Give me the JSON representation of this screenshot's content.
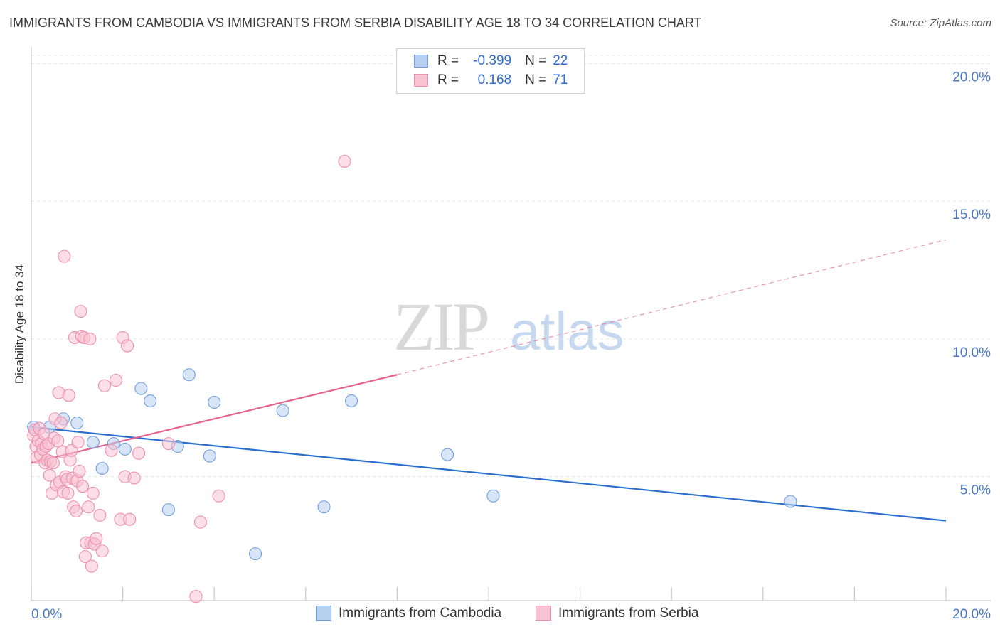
{
  "title": "IMMIGRANTS FROM CAMBODIA VS IMMIGRANTS FROM SERBIA DISABILITY AGE 18 TO 34 CORRELATION CHART",
  "source": "Source: ZipAtlas.com",
  "watermark": {
    "zip": "ZIP",
    "atlas": "atlas"
  },
  "legend": {
    "r_label": "R =",
    "n_label": "N =",
    "cambodia": {
      "r": "-0.399",
      "n": "22"
    },
    "serbia": {
      "r": "0.168",
      "n": "71"
    }
  },
  "colors": {
    "cambodia_fill": "#b8d0f0",
    "cambodia_stroke": "#6e9ee0",
    "cambodia_line": "#2a6fcf",
    "serbia_fill": "#f7c3d3",
    "serbia_stroke": "#ee8fae",
    "serbia_line": "#e4648f",
    "tick_text": "#4a79c8",
    "grid": "#e3e3e3"
  },
  "chart_data": {
    "type": "scatter",
    "title": "IMMIGRANTS FROM CAMBODIA VS IMMIGRANTS FROM SERBIA DISABILITY AGE 18 TO 34 CORRELATION CHART",
    "xlabel": "",
    "ylabel": "Disability Age 18 to 34",
    "xlim": [
      0,
      20
    ],
    "ylim": [
      0.5,
      20.5
    ],
    "x_tick_labels": [
      {
        "value": 0,
        "label": "0.0%"
      },
      {
        "value": 20,
        "label": "20.0%"
      }
    ],
    "y_tick_labels": [
      {
        "value": 20,
        "label": "20.0%"
      },
      {
        "value": 15,
        "label": "15.0%"
      },
      {
        "value": 10,
        "label": "10.0%"
      },
      {
        "value": 5,
        "label": "5.0%"
      }
    ],
    "x_minor_ticks": [
      0,
      2,
      4,
      6,
      8,
      10,
      12,
      14,
      16,
      18,
      20
    ],
    "series": [
      {
        "name": "Immigrants from Cambodia",
        "color_key": "cambodia",
        "points": [
          [
            0.05,
            6.8
          ],
          [
            0.4,
            6.8
          ],
          [
            0.7,
            7.1
          ],
          [
            1.0,
            6.95
          ],
          [
            1.35,
            6.25
          ],
          [
            1.55,
            5.3
          ],
          [
            1.8,
            6.2
          ],
          [
            2.05,
            6.0
          ],
          [
            2.4,
            8.2
          ],
          [
            2.6,
            7.75
          ],
          [
            3.0,
            3.8
          ],
          [
            3.2,
            6.1
          ],
          [
            3.45,
            8.7
          ],
          [
            3.9,
            5.75
          ],
          [
            4.0,
            7.7
          ],
          [
            4.9,
            2.2
          ],
          [
            5.5,
            7.4
          ],
          [
            6.4,
            3.9
          ],
          [
            7.0,
            7.75
          ],
          [
            9.1,
            5.8
          ],
          [
            10.1,
            4.3
          ],
          [
            16.6,
            4.1
          ]
        ],
        "trend": {
          "x": [
            0,
            20
          ],
          "y": [
            6.8,
            3.4
          ],
          "style": "solid"
        }
      },
      {
        "name": "Immigrants from Serbia",
        "color_key": "serbia",
        "points": [
          [
            0.05,
            6.5
          ],
          [
            0.08,
            6.7
          ],
          [
            0.1,
            6.1
          ],
          [
            0.12,
            5.7
          ],
          [
            0.15,
            6.3
          ],
          [
            0.18,
            6.75
          ],
          [
            0.2,
            5.8
          ],
          [
            0.22,
            6.2
          ],
          [
            0.25,
            6.0
          ],
          [
            0.28,
            6.55
          ],
          [
            0.3,
            5.5
          ],
          [
            0.32,
            6.1
          ],
          [
            0.35,
            5.6
          ],
          [
            0.38,
            6.2
          ],
          [
            0.4,
            5.05
          ],
          [
            0.42,
            5.55
          ],
          [
            0.45,
            4.4
          ],
          [
            0.48,
            5.5
          ],
          [
            0.5,
            6.4
          ],
          [
            0.52,
            7.1
          ],
          [
            0.55,
            4.7
          ],
          [
            0.58,
            6.3
          ],
          [
            0.6,
            8.05
          ],
          [
            0.62,
            4.8
          ],
          [
            0.65,
            6.95
          ],
          [
            0.68,
            5.9
          ],
          [
            0.7,
            4.45
          ],
          [
            0.72,
            13.0
          ],
          [
            0.75,
            5.0
          ],
          [
            0.78,
            4.9
          ],
          [
            0.8,
            4.4
          ],
          [
            0.82,
            7.95
          ],
          [
            0.85,
            5.6
          ],
          [
            0.88,
            5.95
          ],
          [
            0.9,
            4.95
          ],
          [
            0.92,
            3.9
          ],
          [
            0.95,
            10.05
          ],
          [
            0.98,
            3.75
          ],
          [
            1.0,
            4.85
          ],
          [
            1.02,
            6.25
          ],
          [
            1.05,
            5.2
          ],
          [
            1.08,
            11.0
          ],
          [
            1.1,
            10.1
          ],
          [
            1.12,
            4.65
          ],
          [
            1.15,
            10.05
          ],
          [
            1.18,
            2.1
          ],
          [
            1.2,
            2.6
          ],
          [
            1.25,
            3.9
          ],
          [
            1.28,
            10.0
          ],
          [
            1.3,
            2.6
          ],
          [
            1.32,
            1.75
          ],
          [
            1.35,
            4.4
          ],
          [
            1.38,
            2.55
          ],
          [
            1.42,
            2.75
          ],
          [
            1.5,
            3.6
          ],
          [
            1.55,
            2.3
          ],
          [
            1.6,
            8.3
          ],
          [
            1.75,
            5.95
          ],
          [
            1.85,
            8.5
          ],
          [
            1.95,
            3.45
          ],
          [
            2.0,
            10.05
          ],
          [
            2.05,
            5.0
          ],
          [
            2.1,
            9.75
          ],
          [
            2.15,
            3.45
          ],
          [
            2.25,
            4.95
          ],
          [
            2.35,
            5.85
          ],
          [
            3.0,
            6.2
          ],
          [
            3.6,
            0.65
          ],
          [
            3.7,
            3.35
          ],
          [
            4.1,
            4.3
          ],
          [
            6.85,
            16.45
          ]
        ],
        "trend": {
          "x": [
            0,
            8
          ],
          "y": [
            5.5,
            8.7
          ],
          "style": "solid",
          "extension": {
            "x": [
              8,
              20
            ],
            "y": [
              8.7,
              13.6
            ],
            "style": "dashed"
          }
        }
      }
    ]
  }
}
